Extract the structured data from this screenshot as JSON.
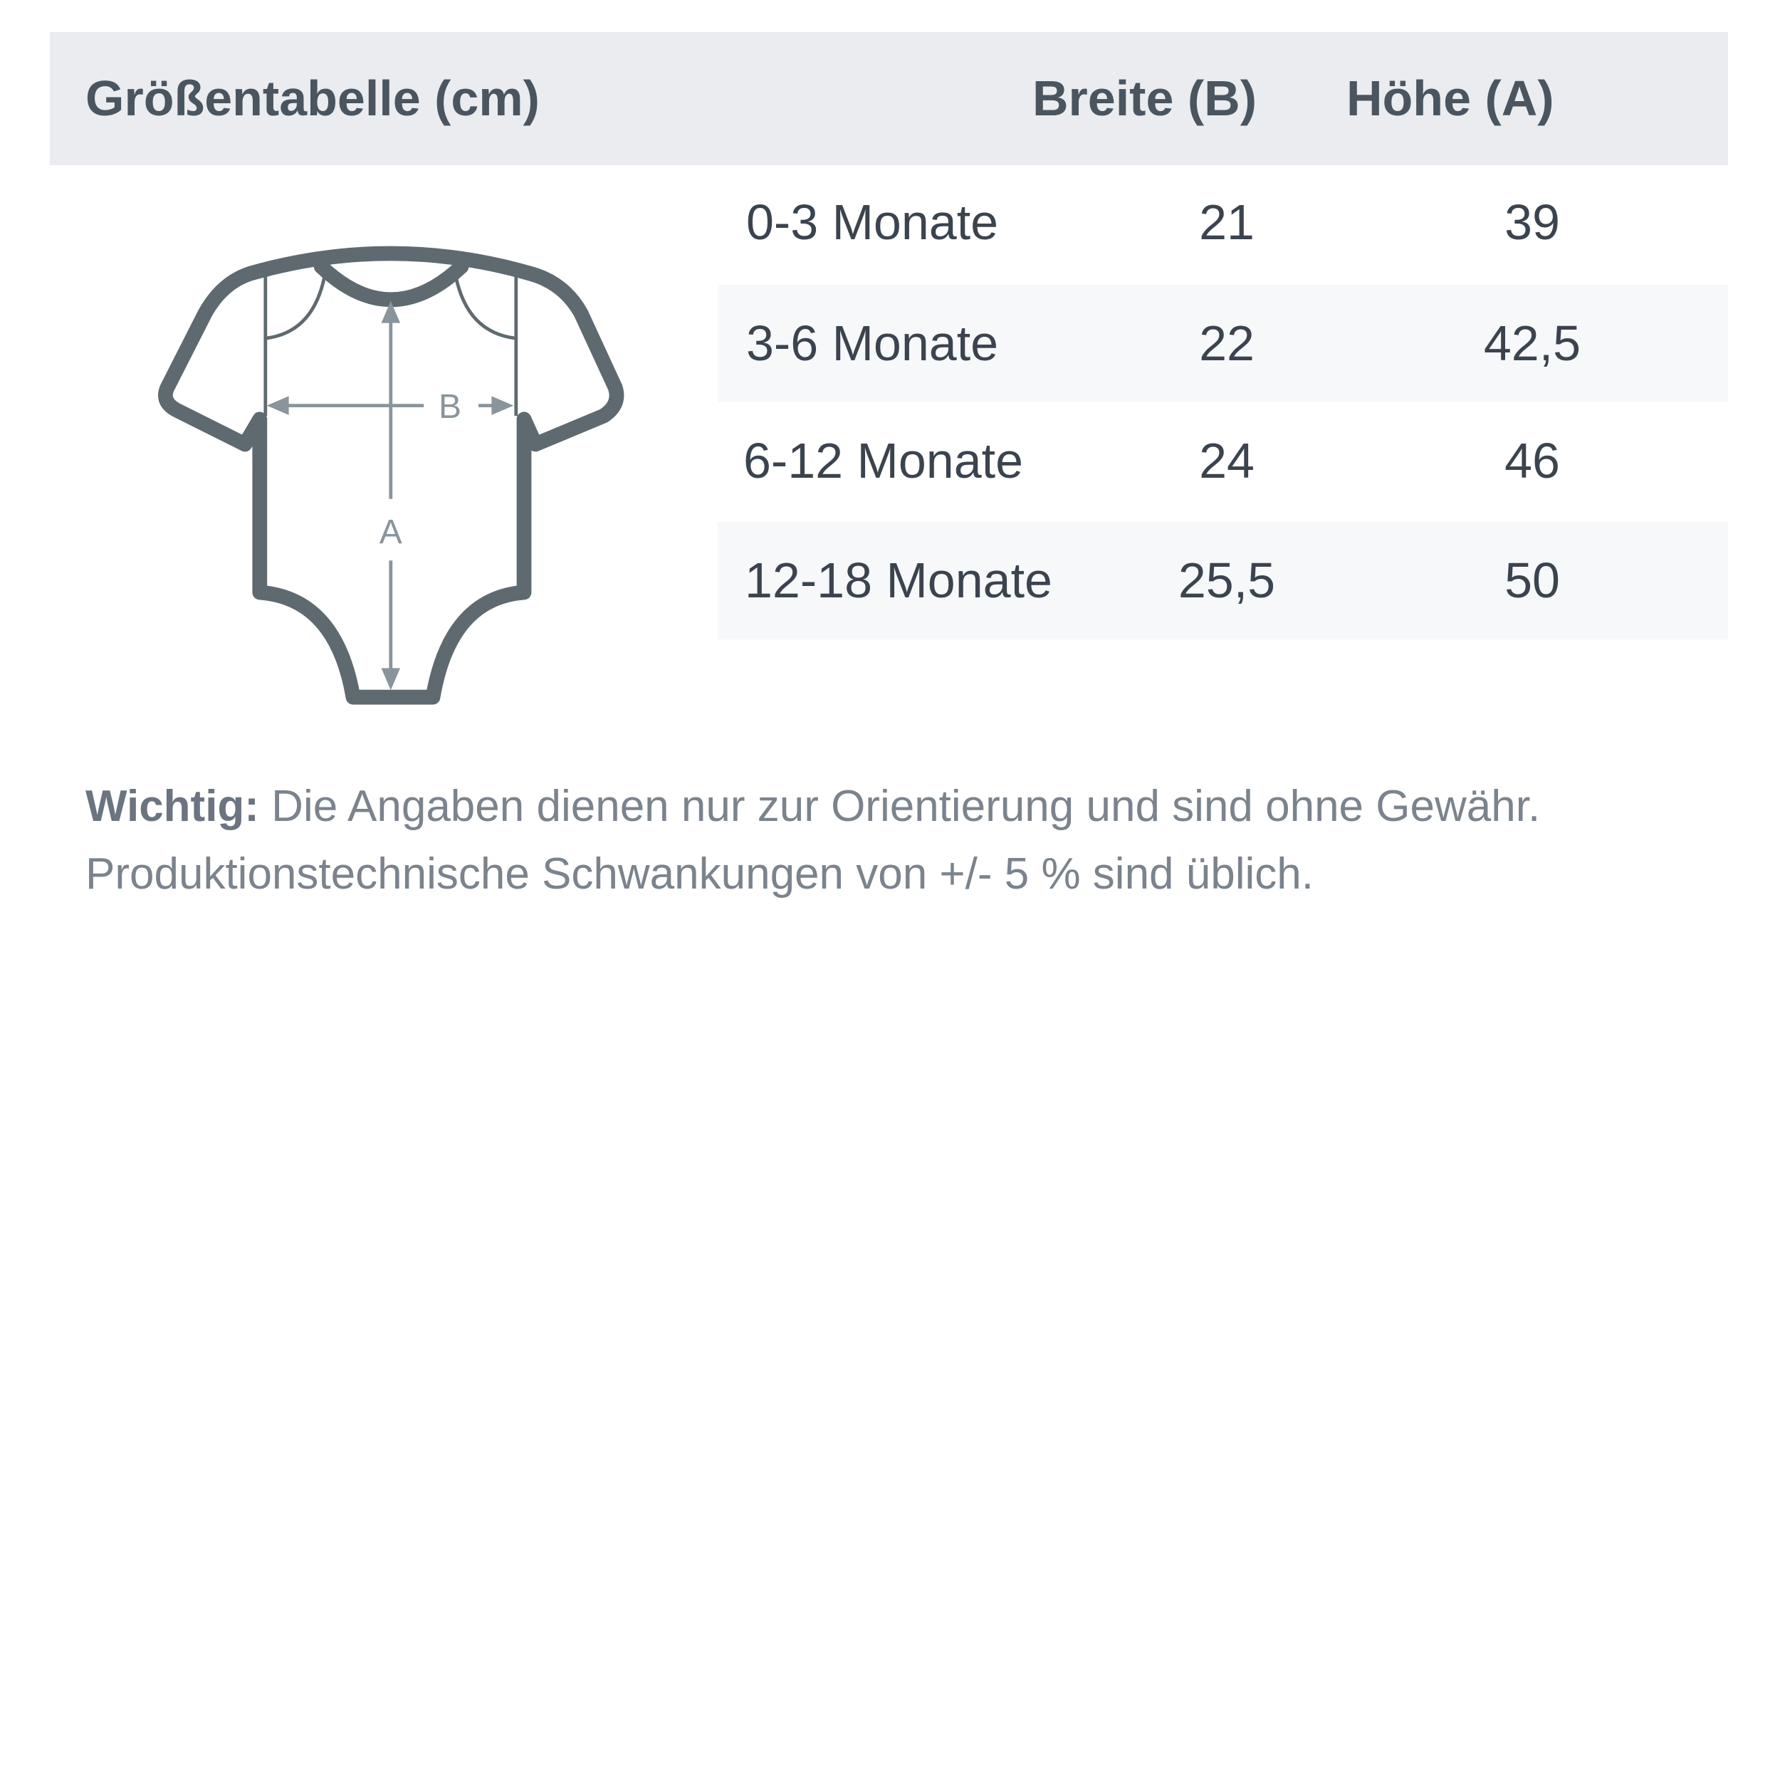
{
  "header": {
    "title": "Größentabelle (cm)",
    "col_width": "Breite (B)",
    "col_height": "Höhe (A)"
  },
  "rows": [
    {
      "size": "0-3 Monate",
      "width": "21",
      "height": "39"
    },
    {
      "size": "3-6 Monate",
      "width": "22",
      "height": "42,5"
    },
    {
      "size": "6-12 Monate",
      "width": "24",
      "height": "46"
    },
    {
      "size": "12-18 Monate",
      "width": "25,5",
      "height": "50"
    }
  ],
  "diagram": {
    "icon": "baby-bodysuit-icon",
    "label_b": "B",
    "label_a": "A"
  },
  "note": {
    "bold": "Wichtig:",
    "line1": " Die Angaben dienen nur zur Orientierung und sind ohne Gewähr.",
    "line2": "Produktionstechnische Schwankungen von +/- 5 % sind üblich."
  },
  "colors": {
    "header_bg": "#eaecef",
    "stripe_bg": "#f7f8fa",
    "outline": "#5f6a70",
    "measure": "#8a949b"
  }
}
